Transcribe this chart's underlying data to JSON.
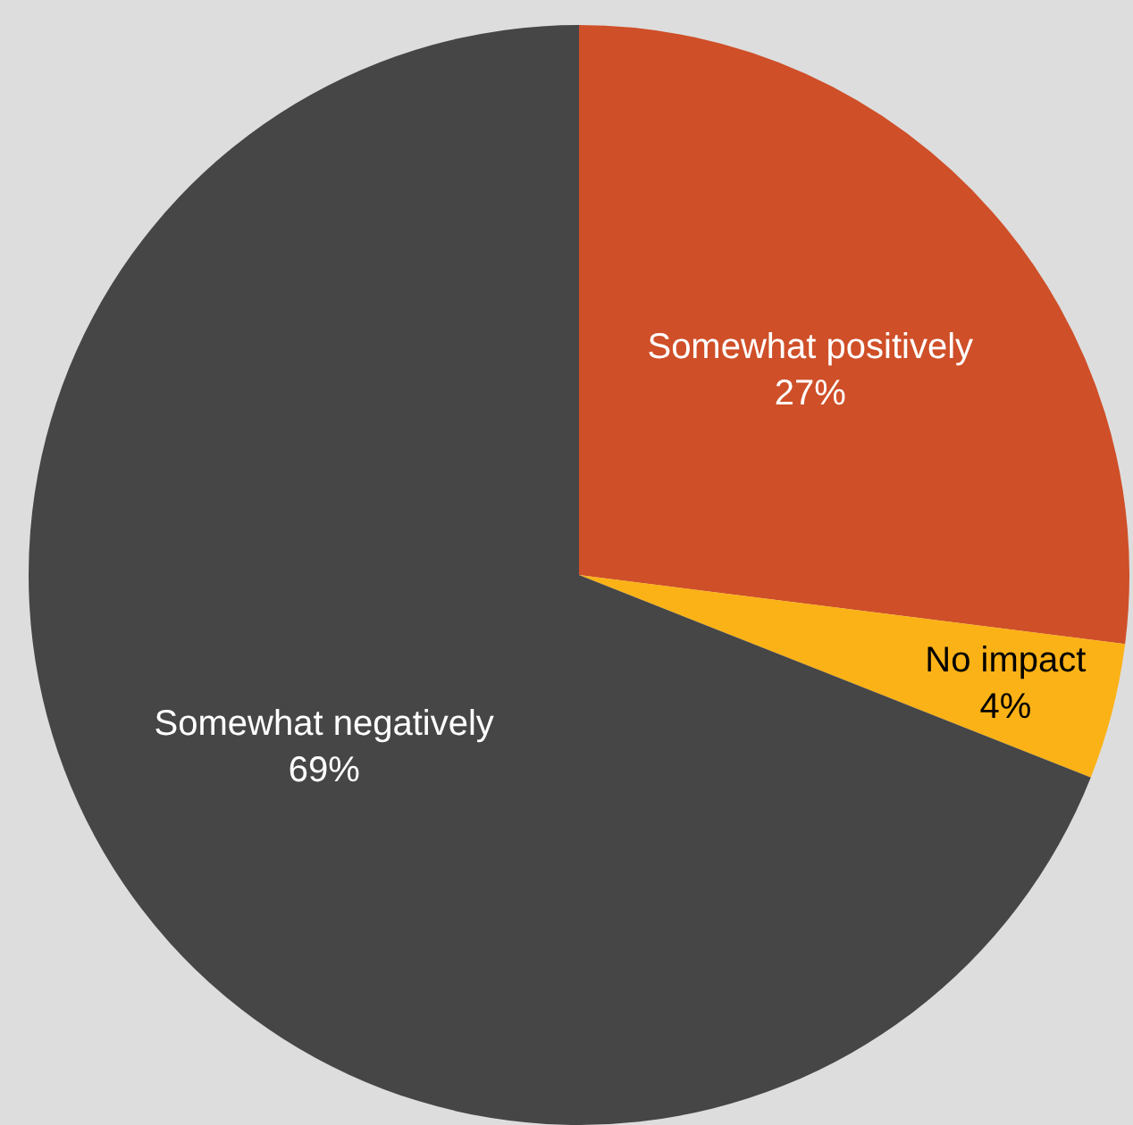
{
  "chart_data": {
    "type": "pie",
    "categories": [
      "Somewhat positively",
      "No impact",
      "Somewhat negatively"
    ],
    "values": [
      27,
      4,
      69
    ],
    "colors": [
      "#cf4f28",
      "#fbb216",
      "#464646"
    ],
    "value_labels": [
      "27%",
      "4%",
      "69%"
    ],
    "legend": false
  }
}
